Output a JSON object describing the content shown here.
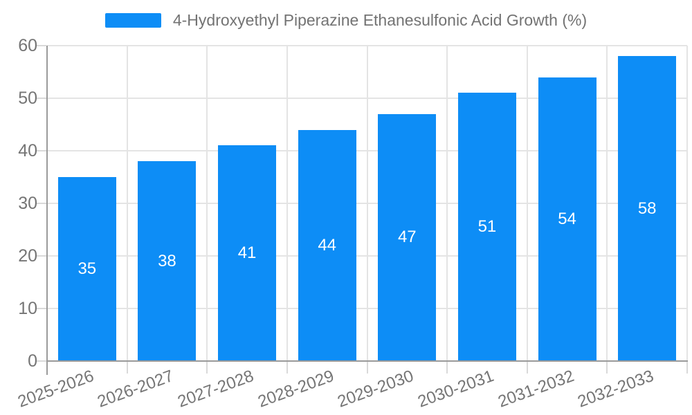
{
  "chart_data": {
    "type": "bar",
    "title": "4-Hydroxyethyl Piperazine Ethanesulfonic Acid Growth (%)",
    "categories": [
      "2025-2026",
      "2026-2027",
      "2027-2028",
      "2028-2029",
      "2029-2030",
      "2030-2031",
      "2031-2032",
      "2032-2033"
    ],
    "values": [
      35,
      38,
      41,
      44,
      47,
      51,
      54,
      58
    ],
    "xlabel": "",
    "ylabel": "",
    "ylim": [
      0,
      60
    ],
    "yticks": [
      0,
      10,
      20,
      30,
      40,
      50,
      60
    ],
    "grid": true,
    "legend_position": "top-center",
    "bar_color": "#0d8df6",
    "value_label_color": "#ffffff",
    "axis_color": "#9a9a9a",
    "gridline_color": "#e4e4e4",
    "tick_label_color": "#757575"
  }
}
